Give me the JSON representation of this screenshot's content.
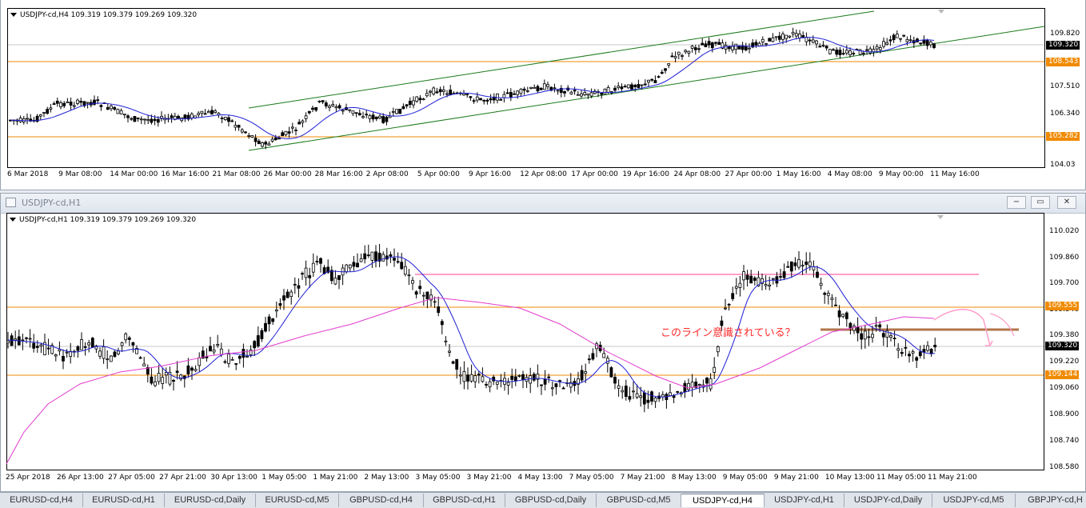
{
  "colors": {
    "ma_fast": "#1f1fd6",
    "ma_slow": "#e23ccf",
    "level_line": "#f08a00",
    "channel": "#1a7a1a",
    "pink_line": "#ff9ec8",
    "brown_line": "#b2744a",
    "annot": "#ff2a2a",
    "up_tag": "#f08a00",
    "price_tag": "#000000"
  },
  "top_chart": {
    "header": "USDJPY-cd,H4  109.319 109.379 109.269 109.320",
    "y_ticks": [
      "109.820",
      "107.510",
      "106.340",
      "104.03"
    ],
    "price_tags": [
      {
        "label": "109.320",
        "kind": "current"
      },
      {
        "label": "108.543",
        "kind": "level"
      },
      {
        "label": "105.282",
        "kind": "level"
      }
    ],
    "x_ticks": [
      "6 Mar 2018",
      "9 Mar 08:00",
      "14 Mar 00:00",
      "16 Mar 16:00",
      "21 Mar 08:00",
      "26 Mar 00:00",
      "28 Mar 16:00",
      "2 Apr 08:00",
      "5 Apr 00:00",
      "9 Apr 16:00",
      "12 Apr 08:00",
      "17 Apr 00:00",
      "19 Apr 16:00",
      "24 Apr 08:00",
      "27 Apr 00:00",
      "1 May 16:00",
      "4 May 08:00",
      "9 May 00:00",
      "11 May 16:00"
    ]
  },
  "bottom_window": {
    "title": "USDJPY-cd,H1",
    "buttons": {
      "minimize": "−",
      "restore": "▭",
      "close": "✕"
    }
  },
  "bottom_chart": {
    "header": "USDJPY-cd,H1  109.319 109.379 109.269 109.320",
    "y_ticks": [
      "110.020",
      "109.860",
      "109.700",
      "109.540",
      "109.380",
      "109.220",
      "109.060",
      "108.900",
      "108.740",
      "108.580"
    ],
    "price_tags": [
      {
        "label": "109.555",
        "kind": "level"
      },
      {
        "label": "109.320",
        "kind": "current"
      },
      {
        "label": "109.144",
        "kind": "level"
      }
    ],
    "x_ticks": [
      "25 Apr 2018",
      "26 Apr 13:00",
      "27 Apr 05:00",
      "27 Apr 21:00",
      "30 Apr 13:00",
      "1 May 05:00",
      "1 May 21:00",
      "2 May 13:00",
      "3 May 05:00",
      "3 May 21:00",
      "4 May 13:00",
      "7 May 05:00",
      "7 May 21:00",
      "8 May 13:00",
      "9 May 05:00",
      "9 May 21:00",
      "10 May 13:00",
      "11 May 05:00",
      "11 May 21:00"
    ],
    "annotation": "このライン意識されている？"
  },
  "tabs": [
    {
      "label": "EURUSD-cd,H4",
      "active": false
    },
    {
      "label": "EURUSD-cd,H1",
      "active": false
    },
    {
      "label": "EURUSD-cd,Daily",
      "active": false
    },
    {
      "label": "EURUSD-cd,M5",
      "active": false
    },
    {
      "label": "GBPUSD-cd,H4",
      "active": false
    },
    {
      "label": "GBPUSD-cd,H1",
      "active": false
    },
    {
      "label": "GBPUSD-cd,Daily",
      "active": false
    },
    {
      "label": "GBPUSD-cd,M5",
      "active": false
    },
    {
      "label": "USDJPY-cd,H4",
      "active": true
    },
    {
      "label": "USDJPY-cd,H1",
      "active": false
    },
    {
      "label": "USDJPY-cd,Daily",
      "active": false
    },
    {
      "label": "USDJPY-cd,M5",
      "active": false
    },
    {
      "label": "GBPJPY-cd,H",
      "active": false
    }
  ]
}
